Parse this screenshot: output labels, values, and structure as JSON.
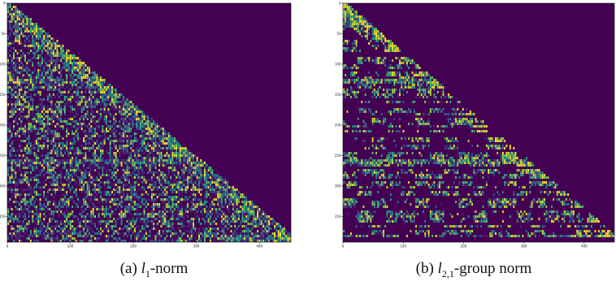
{
  "chart_data": [
    {
      "type": "heatmap",
      "panel": "a",
      "caption_prefix": "(a) ",
      "caption_var": "l",
      "caption_sub": "1",
      "caption_suffix": "-norm",
      "shape": "lower-triangular",
      "rows": 392,
      "cols": 450,
      "xlim": [
        0,
        450
      ],
      "ylim": [
        392,
        0
      ],
      "xticks": [
        0,
        100,
        200,
        300,
        400
      ],
      "yticks": [
        0,
        50,
        100,
        150,
        200,
        250,
        300,
        350
      ],
      "x_tick_labels": [
        "0",
        "100",
        "200",
        "300",
        "400"
      ],
      "y_tick_labels": [
        "0",
        "50",
        "100",
        "150",
        "200",
        "250",
        "300",
        "350"
      ],
      "colormap": "viridis",
      "background_color": "#440154",
      "density": 0.55,
      "highlight_rows": [
        127,
        258
      ],
      "bottom_band_start_col": 330,
      "grid": false
    },
    {
      "type": "heatmap",
      "panel": "b",
      "caption_prefix": "(b) ",
      "caption_var": "l",
      "caption_sub": "2,1",
      "caption_suffix": "-group norm",
      "shape": "lower-triangular",
      "rows": 392,
      "cols": 450,
      "xlim": [
        0,
        450
      ],
      "ylim": [
        392,
        0
      ],
      "xticks": [
        0,
        100,
        200,
        300,
        400
      ],
      "yticks": [
        0,
        50,
        100,
        150,
        200,
        250,
        300,
        350
      ],
      "x_tick_labels": [
        "0",
        "100",
        "200",
        "300",
        "400"
      ],
      "y_tick_labels": [
        "0",
        "50",
        "100",
        "150",
        "200",
        "250",
        "300",
        "350"
      ],
      "colormap": "viridis",
      "background_color": "#440154",
      "density": 0.3,
      "highlight_rows": [
        127,
        258
      ],
      "bottom_band_start_col": 330,
      "grid": false
    }
  ]
}
